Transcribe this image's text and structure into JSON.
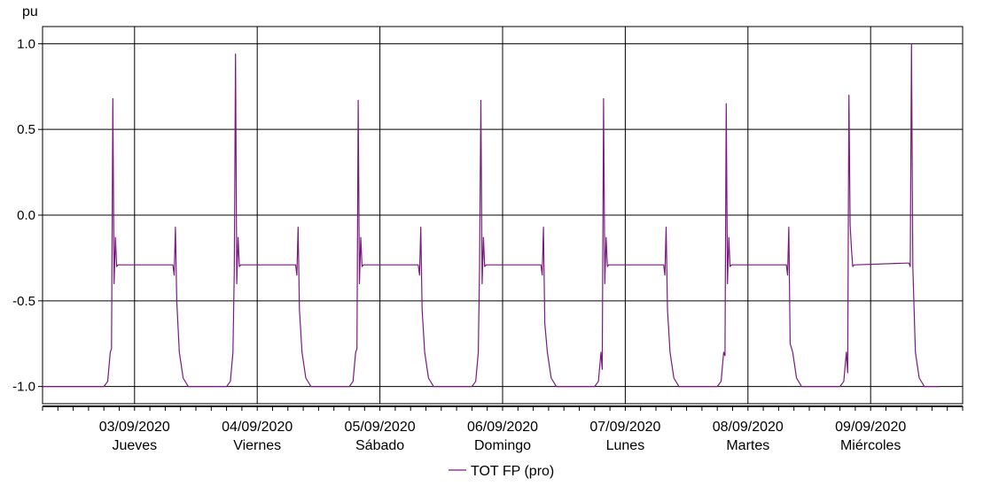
{
  "chart_data": {
    "type": "line",
    "ylabel": "pu",
    "ylim": [
      -1.1,
      1.1
    ],
    "yticks": [
      {
        "value": 1.0,
        "label": "1.0"
      },
      {
        "value": 0.5,
        "label": "0.5"
      },
      {
        "value": 0.0,
        "label": "0.0"
      },
      {
        "value": -0.5,
        "label": "-0.5"
      },
      {
        "value": -1.0,
        "label": "-1.0"
      }
    ],
    "xlim": [
      "2020-09-02T18:00",
      "2020-09-10T06:00"
    ],
    "xticks": [
      {
        "x": "2020-09-03T12:00",
        "date": "03/09/2020",
        "day": "Jueves"
      },
      {
        "x": "2020-09-04T12:00",
        "date": "04/09/2020",
        "day": "Viernes"
      },
      {
        "x": "2020-09-05T12:00",
        "date": "05/09/2020",
        "day": "Sábado"
      },
      {
        "x": "2020-09-06T12:00",
        "date": "06/09/2020",
        "day": "Domingo"
      },
      {
        "x": "2020-09-07T12:00",
        "date": "07/09/2020",
        "day": "Lunes"
      },
      {
        "x": "2020-09-08T12:00",
        "date": "08/09/2020",
        "day": "Martes"
      },
      {
        "x": "2020-09-09T12:00",
        "date": "09/09/2020",
        "day": "Miércoles"
      }
    ],
    "grid": true,
    "legend_position": "bottom-center",
    "series": [
      {
        "name": "TOT FP (pro)",
        "color": "#7a1a80",
        "x": [
          "2020-09-02T18:00",
          "2020-09-03T06:00",
          "2020-09-03T06:45",
          "2020-09-03T07:15",
          "2020-09-03T07:30",
          "2020-09-03T07:45",
          "2020-09-03T08:00",
          "2020-09-03T08:15",
          "2020-09-03T08:30",
          "2020-09-03T08:45",
          "2020-09-03T09:00",
          "2020-09-03T19:30",
          "2020-09-03T19:45",
          "2020-09-03T20:00",
          "2020-09-03T20:15",
          "2020-09-03T20:45",
          "2020-09-03T21:30",
          "2020-09-03T22:30",
          "2020-09-03T23:30",
          "2020-09-04T06:00",
          "2020-09-04T06:45",
          "2020-09-04T07:15",
          "2020-09-04T07:30",
          "2020-09-04T07:45",
          "2020-09-04T08:00",
          "2020-09-04T08:15",
          "2020-09-04T08:30",
          "2020-09-04T08:45",
          "2020-09-04T09:00",
          "2020-09-04T19:30",
          "2020-09-04T19:45",
          "2020-09-04T20:00",
          "2020-09-04T20:15",
          "2020-09-04T20:45",
          "2020-09-04T21:30",
          "2020-09-04T22:30",
          "2020-09-04T23:30",
          "2020-09-05T06:00",
          "2020-09-05T06:45",
          "2020-09-05T07:15",
          "2020-09-05T07:30",
          "2020-09-05T07:45",
          "2020-09-05T08:00",
          "2020-09-05T08:15",
          "2020-09-05T08:30",
          "2020-09-05T08:45",
          "2020-09-05T09:00",
          "2020-09-05T19:30",
          "2020-09-05T19:45",
          "2020-09-05T20:00",
          "2020-09-05T20:15",
          "2020-09-05T20:45",
          "2020-09-05T21:30",
          "2020-09-05T22:30",
          "2020-09-05T23:30",
          "2020-09-06T06:00",
          "2020-09-06T06:45",
          "2020-09-06T07:15",
          "2020-09-06T07:30",
          "2020-09-06T07:45",
          "2020-09-06T08:00",
          "2020-09-06T08:15",
          "2020-09-06T08:30",
          "2020-09-06T08:45",
          "2020-09-06T09:00",
          "2020-09-06T19:30",
          "2020-09-06T19:45",
          "2020-09-06T20:00",
          "2020-09-06T20:15",
          "2020-09-06T20:45",
          "2020-09-06T21:30",
          "2020-09-06T22:30",
          "2020-09-06T23:30",
          "2020-09-07T06:00",
          "2020-09-07T06:45",
          "2020-09-07T07:15",
          "2020-09-07T07:30",
          "2020-09-07T07:45",
          "2020-09-07T08:00",
          "2020-09-07T08:15",
          "2020-09-07T08:30",
          "2020-09-07T08:45",
          "2020-09-07T09:00",
          "2020-09-07T19:30",
          "2020-09-07T19:45",
          "2020-09-07T20:00",
          "2020-09-07T20:15",
          "2020-09-07T20:45",
          "2020-09-07T21:30",
          "2020-09-07T22:30",
          "2020-09-07T23:30",
          "2020-09-08T06:00",
          "2020-09-08T06:45",
          "2020-09-08T07:15",
          "2020-09-08T07:30",
          "2020-09-08T07:45",
          "2020-09-08T08:00",
          "2020-09-08T08:15",
          "2020-09-08T08:30",
          "2020-09-08T08:45",
          "2020-09-08T09:00",
          "2020-09-08T19:30",
          "2020-09-08T19:45",
          "2020-09-08T20:00",
          "2020-09-08T20:15",
          "2020-09-08T20:45",
          "2020-09-08T21:30",
          "2020-09-08T22:30",
          "2020-09-08T23:30",
          "2020-09-09T06:00",
          "2020-09-09T06:45",
          "2020-09-09T07:15",
          "2020-09-09T07:30",
          "2020-09-09T07:45",
          "2020-09-09T08:00",
          "2020-09-09T08:15",
          "2020-09-09T08:30",
          "2020-09-09T08:45",
          "2020-09-09T09:00",
          "2020-09-09T19:00",
          "2020-09-09T19:30",
          "2020-09-09T19:45",
          "2020-09-09T20:00",
          "2020-09-09T20:15",
          "2020-09-09T20:45",
          "2020-09-09T21:30",
          "2020-09-09T22:30",
          "2020-09-09T23:30",
          "2020-09-10T01:30"
        ],
        "y": [
          -1.0,
          -1.0,
          -0.97,
          -0.8,
          -0.78,
          0.68,
          -0.4,
          -0.13,
          -0.3,
          -0.29,
          -0.29,
          -0.29,
          -0.35,
          -0.07,
          -0.5,
          -0.8,
          -0.95,
          -1.0,
          -1.0,
          -1.0,
          -0.97,
          -0.8,
          -0.33,
          0.94,
          -0.4,
          -0.13,
          -0.3,
          -0.29,
          -0.29,
          -0.29,
          -0.35,
          -0.07,
          -0.55,
          -0.8,
          -0.95,
          -1.0,
          -1.0,
          -1.0,
          -0.97,
          -0.8,
          -0.78,
          0.67,
          -0.4,
          -0.13,
          -0.3,
          -0.29,
          -0.29,
          -0.29,
          -0.35,
          -0.07,
          -0.55,
          -0.8,
          -0.95,
          -1.0,
          -1.0,
          -1.0,
          -0.97,
          -0.8,
          -0.3,
          0.67,
          -0.4,
          -0.13,
          -0.3,
          -0.29,
          -0.29,
          -0.29,
          -0.35,
          -0.07,
          -0.63,
          -0.8,
          -0.95,
          -1.0,
          -1.0,
          -1.0,
          -0.97,
          -0.8,
          -0.9,
          0.68,
          -0.4,
          -0.13,
          -0.3,
          -0.29,
          -0.29,
          -0.29,
          -0.35,
          -0.07,
          -0.55,
          -0.8,
          -0.95,
          -1.0,
          -1.0,
          -1.0,
          -0.97,
          -0.8,
          -0.82,
          0.65,
          -0.4,
          -0.13,
          -0.3,
          -0.29,
          -0.29,
          -0.29,
          -0.35,
          -0.07,
          -0.75,
          -0.8,
          -0.95,
          -1.0,
          -1.0,
          -1.0,
          -0.97,
          -0.8,
          -0.92,
          0.7,
          -0.06,
          -0.2,
          -0.3,
          -0.29,
          -0.29,
          -0.28,
          -0.28,
          -0.3,
          1.0,
          -0.3,
          -0.8,
          -0.95,
          -1.0,
          -1.0,
          -1.0
        ]
      }
    ]
  }
}
